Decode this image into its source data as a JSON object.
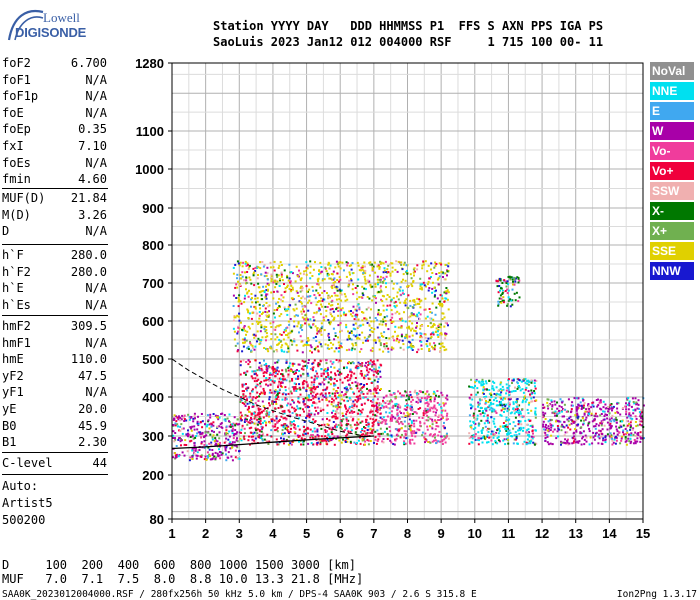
{
  "logo": {
    "line1": "Lowell",
    "line2": "DIGISONDE"
  },
  "header": {
    "line1": "Station YYYY DAY   DDD HHMMSS P1  FFS S AXN PPS IGA PS",
    "line2": "SaoLuis 2023 Jan12 012 004000 RSF     1 715 100 00- 11"
  },
  "parameters": [
    [
      {
        "name": "foF2",
        "value": "6.700"
      },
      {
        "name": "foF1",
        "value": "N/A"
      },
      {
        "name": "foF1p",
        "value": "N/A"
      },
      {
        "name": "foE",
        "value": "N/A"
      },
      {
        "name": "foEp",
        "value": "0.35"
      },
      {
        "name": "fxI",
        "value": "7.10"
      },
      {
        "name": "foEs",
        "value": "N/A"
      },
      {
        "name": "fmin",
        "value": "4.60"
      }
    ],
    [
      {
        "name": "MUF(D)",
        "value": "21.84"
      },
      {
        "name": "M(D)",
        "value": "3.26"
      },
      {
        "name": "D",
        "value": "N/A"
      }
    ],
    [
      {
        "name": "h`F",
        "value": "280.0"
      },
      {
        "name": "h`F2",
        "value": "280.0"
      },
      {
        "name": "h`E",
        "value": "N/A"
      },
      {
        "name": "h`Es",
        "value": "N/A"
      }
    ],
    [
      {
        "name": "hmF2",
        "value": "309.5"
      },
      {
        "name": "hmF1",
        "value": "N/A"
      },
      {
        "name": "hmE",
        "value": "110.0"
      },
      {
        "name": "yF2",
        "value": "47.5"
      },
      {
        "name": "yF1",
        "value": "N/A"
      },
      {
        "name": "yE",
        "value": "20.0"
      },
      {
        "name": "B0",
        "value": "45.9"
      },
      {
        "name": "B1",
        "value": "2.30"
      }
    ],
    [
      {
        "name": "C-level",
        "value": "44"
      }
    ]
  ],
  "autoscale": {
    "line1": "Auto:",
    "line2": "Artist5",
    "line3": "500200"
  },
  "legend": [
    {
      "label": "NoVal",
      "color": "#909090"
    },
    {
      "label": "NNE",
      "color": "#00e0f0"
    },
    {
      "label": "E",
      "color": "#40a8f0"
    },
    {
      "label": "W",
      "color": "#a800a8"
    },
    {
      "label": "Vo-",
      "color": "#f03c9c"
    },
    {
      "label": "Vo+",
      "color": "#f0003c"
    },
    {
      "label": "SSW",
      "color": "#f0b0b0"
    },
    {
      "label": "X-",
      "color": "#007800"
    },
    {
      "label": "X+",
      "color": "#70b050"
    },
    {
      "label": "SSE",
      "color": "#e0d000"
    },
    {
      "label": "NNW",
      "color": "#1818d0"
    }
  ],
  "chart_data": {
    "type": "scatter",
    "title": "",
    "xlabel": "",
    "ylabel": "",
    "xlim": [
      1,
      15
    ],
    "ylim": [
      80,
      1280
    ],
    "x_ticks": [
      1,
      2,
      3,
      4,
      5,
      6,
      7,
      8,
      9,
      10,
      11,
      12,
      13,
      14,
      15
    ],
    "y_ticks": [
      80,
      200,
      300,
      400,
      500,
      600,
      700,
      800,
      900,
      1000,
      1100,
      1280
    ],
    "y_scale": "approximately logarithmic in height",
    "grid": true,
    "dominant_color_regions": [
      {
        "x_range": [
          1.0,
          3.0
        ],
        "y_range": [
          240,
          360
        ],
        "color": "#a800a8",
        "desc": "low-frequency F trace (W/NNW mix)"
      },
      {
        "x_range": [
          3.0,
          7.2
        ],
        "y_range": [
          280,
          500
        ],
        "color": "#f0003c",
        "desc": "main F2 echo band"
      },
      {
        "x_range": [
          7.2,
          9.2
        ],
        "y_range": [
          280,
          420
        ],
        "color": "#f03c9c",
        "desc": "F2 echo band"
      },
      {
        "x_range": [
          9.8,
          11.8
        ],
        "y_range": [
          280,
          450
        ],
        "color": "#00e0f0",
        "desc": "upper F2 band"
      },
      {
        "x_range": [
          12.0,
          15.0
        ],
        "y_range": [
          280,
          400
        ],
        "color": "#a800a8",
        "desc": "high-frequency spread"
      },
      {
        "x_range": [
          2.8,
          9.2
        ],
        "y_range": [
          520,
          760
        ],
        "color": "#e0d000",
        "desc": "second-hop echoes"
      },
      {
        "x_range": [
          10.6,
          11.3
        ],
        "y_range": [
          640,
          720
        ],
        "color": "#007800",
        "desc": "isolated high echoes"
      }
    ],
    "fitted_profile": {
      "desc": "solid black trace and dashed profile",
      "solid_x": [
        1.0,
        2.0,
        3.0,
        4.0,
        5.0,
        6.0,
        7.0
      ],
      "solid_y": [
        268,
        272,
        278,
        284,
        290,
        295,
        300
      ],
      "dashed_x": [
        1.0,
        1.5,
        2.0,
        2.5,
        3.0,
        3.5,
        4.0,
        4.5,
        5.0,
        5.5,
        6.0,
        6.7
      ],
      "dashed_y": [
        500,
        470,
        445,
        420,
        400,
        380,
        365,
        350,
        338,
        325,
        312,
        300
      ]
    }
  },
  "footer": {
    "d_row": "D     100  200  400  600  800 1000 1500 3000 [km]",
    "muf_row": "MUF   7.0  7.1  7.5  8.0  8.8 10.0 13.3 21.8 [MHz]",
    "file_info": "SAA0K_2023012004000.RSF / 280fx256h 50 kHz 5.0 km / DPS-4 SAA0K 903 / 2.6 S 315.8 E",
    "version": "Ion2Png 1.3.17"
  }
}
